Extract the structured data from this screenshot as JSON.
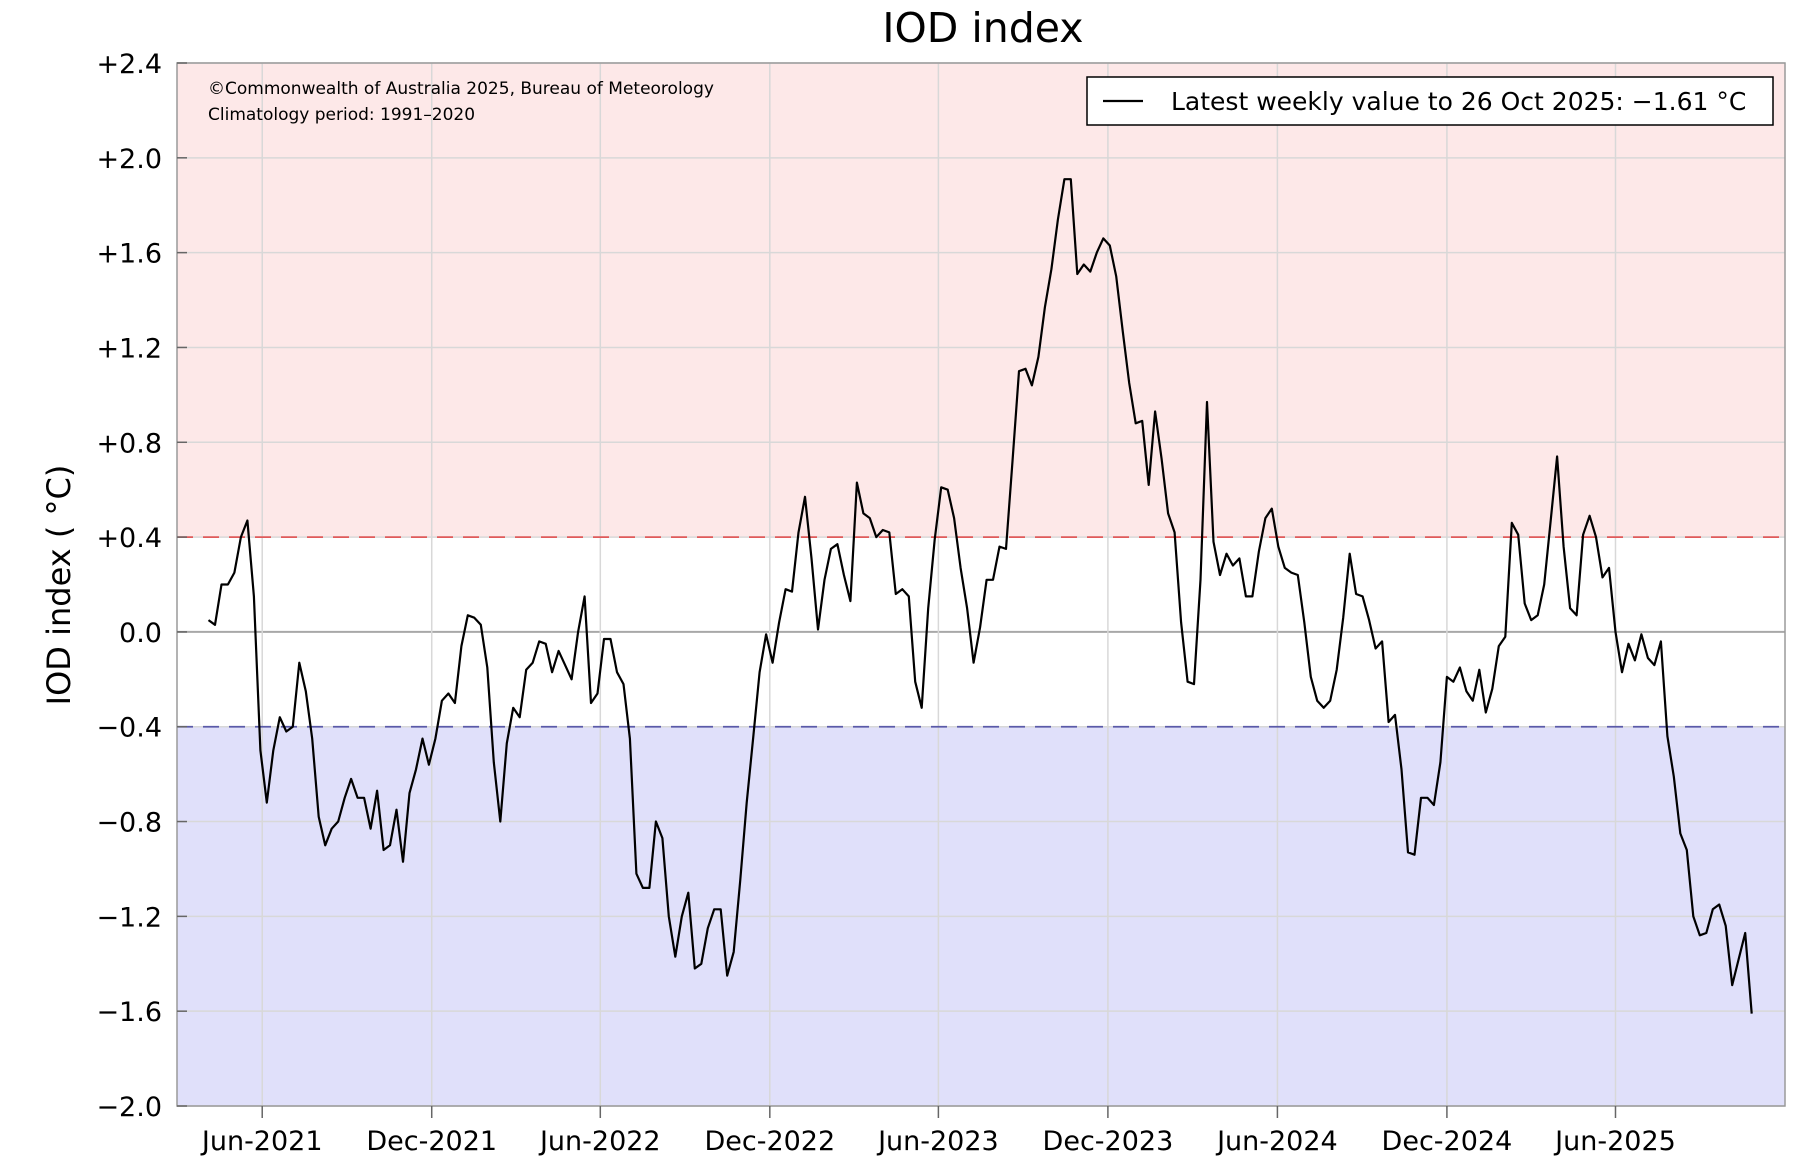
{
  "chart_data": {
    "type": "line",
    "title": "IOD index",
    "ylabel": "IOD index ( °C)",
    "xlabel": "",
    "ylim": [
      -2.0,
      2.4
    ],
    "xlim": [
      "2021-03-01",
      "2025-12-01"
    ],
    "yticks": [
      {
        "value": 2.4,
        "label": "+2.4"
      },
      {
        "value": 2.0,
        "label": "+2.0"
      },
      {
        "value": 1.6,
        "label": "+1.6"
      },
      {
        "value": 1.2,
        "label": "+1.2"
      },
      {
        "value": 0.8,
        "label": "+0.8"
      },
      {
        "value": 0.4,
        "label": "+0.4"
      },
      {
        "value": 0.0,
        "label": "0.0"
      },
      {
        "value": -0.4,
        "label": "−0.4"
      },
      {
        "value": -0.8,
        "label": "−0.8"
      },
      {
        "value": -1.2,
        "label": "−1.2"
      },
      {
        "value": -1.6,
        "label": "−1.6"
      },
      {
        "value": -2.0,
        "label": "−2.0"
      }
    ],
    "xticks": [
      {
        "date": "2021-06-01",
        "label": "Jun-2021"
      },
      {
        "date": "2021-12-01",
        "label": "Dec-2021"
      },
      {
        "date": "2022-06-01",
        "label": "Jun-2022"
      },
      {
        "date": "2022-12-01",
        "label": "Dec-2022"
      },
      {
        "date": "2023-06-01",
        "label": "Jun-2023"
      },
      {
        "date": "2023-12-01",
        "label": "Dec-2023"
      },
      {
        "date": "2024-06-01",
        "label": "Jun-2024"
      },
      {
        "date": "2024-12-01",
        "label": "Dec-2024"
      },
      {
        "date": "2025-06-01",
        "label": "Jun-2025"
      }
    ],
    "grid": true,
    "thresholds": [
      {
        "value": 0.4,
        "color": "#e05a5a",
        "style": "dashed"
      },
      {
        "value": -0.4,
        "color": "#5a5aa8",
        "style": "dashed"
      }
    ],
    "bands": [
      {
        "from": 0.4,
        "to": 2.4,
        "color": "#fde8e8"
      },
      {
        "from": -2.0,
        "to": -0.4,
        "color": "#e0e0fa"
      }
    ],
    "annotations": [
      "©Commonwealth of Australia 2025, Bureau of Meteorology",
      "Climatology period: 1991–2020"
    ],
    "legend": {
      "placement": "top-right",
      "label": "Latest weekly value to 26 Oct 2025: −1.61 °C"
    },
    "series": [
      {
        "color": "#000000",
        "x": [
          "2021-04-04",
          "2021-04-11",
          "2021-04-18",
          "2021-04-25",
          "2021-05-02",
          "2021-05-09",
          "2021-05-16",
          "2021-05-23",
          "2021-05-30",
          "2021-06-06",
          "2021-06-13",
          "2021-06-20",
          "2021-06-27",
          "2021-07-04",
          "2021-07-11",
          "2021-07-18",
          "2021-07-25",
          "2021-08-01",
          "2021-08-08",
          "2021-08-15",
          "2021-08-22",
          "2021-08-29",
          "2021-09-05",
          "2021-09-12",
          "2021-09-19",
          "2021-09-26",
          "2021-10-03",
          "2021-10-10",
          "2021-10-17",
          "2021-10-24",
          "2021-10-31",
          "2021-11-07",
          "2021-11-14",
          "2021-11-21",
          "2021-11-28",
          "2021-12-05",
          "2021-12-12",
          "2021-12-19",
          "2021-12-26",
          "2022-01-02",
          "2022-01-09",
          "2022-01-16",
          "2022-01-23",
          "2022-01-30",
          "2022-02-06",
          "2022-02-13",
          "2022-02-20",
          "2022-02-27",
          "2022-03-06",
          "2022-03-13",
          "2022-03-20",
          "2022-03-27",
          "2022-04-03",
          "2022-04-10",
          "2022-04-17",
          "2022-04-24",
          "2022-05-01",
          "2022-05-08",
          "2022-05-15",
          "2022-05-22",
          "2022-05-29",
          "2022-06-05",
          "2022-06-12",
          "2022-06-19",
          "2022-06-26",
          "2022-07-03",
          "2022-07-10",
          "2022-07-17",
          "2022-07-24",
          "2022-07-31",
          "2022-08-07",
          "2022-08-14",
          "2022-08-21",
          "2022-08-28",
          "2022-09-04",
          "2022-09-11",
          "2022-09-18",
          "2022-09-25",
          "2022-10-02",
          "2022-10-09",
          "2022-10-16",
          "2022-10-23",
          "2022-10-30",
          "2022-11-06",
          "2022-11-13",
          "2022-11-20",
          "2022-11-27",
          "2022-12-04",
          "2022-12-11",
          "2022-12-18",
          "2022-12-25",
          "2023-01-01",
          "2023-01-08",
          "2023-01-15",
          "2023-01-22",
          "2023-01-29",
          "2023-02-05",
          "2023-02-12",
          "2023-02-19",
          "2023-02-26",
          "2023-03-05",
          "2023-03-12",
          "2023-03-19",
          "2023-03-26",
          "2023-04-02",
          "2023-04-09",
          "2023-04-16",
          "2023-04-23",
          "2023-04-30",
          "2023-05-07",
          "2023-05-14",
          "2023-05-21",
          "2023-05-28",
          "2023-06-04",
          "2023-06-11",
          "2023-06-18",
          "2023-06-25",
          "2023-07-02",
          "2023-07-09",
          "2023-07-16",
          "2023-07-23",
          "2023-07-30",
          "2023-08-06",
          "2023-08-13",
          "2023-08-20",
          "2023-08-27",
          "2023-09-03",
          "2023-09-10",
          "2023-09-17",
          "2023-09-24",
          "2023-10-01",
          "2023-10-08",
          "2023-10-15",
          "2023-10-22",
          "2023-10-29",
          "2023-11-05",
          "2023-11-12",
          "2023-11-19",
          "2023-11-26",
          "2023-12-03",
          "2023-12-10",
          "2023-12-17",
          "2023-12-24",
          "2023-12-31",
          "2024-01-07",
          "2024-01-14",
          "2024-01-21",
          "2024-01-28",
          "2024-02-04",
          "2024-02-11",
          "2024-02-18",
          "2024-02-25",
          "2024-03-03",
          "2024-03-10",
          "2024-03-17",
          "2024-03-24",
          "2024-03-31",
          "2024-04-07",
          "2024-04-14",
          "2024-04-21",
          "2024-04-28",
          "2024-05-05",
          "2024-05-12",
          "2024-05-19",
          "2024-05-26",
          "2024-06-02",
          "2024-06-09",
          "2024-06-16",
          "2024-06-23",
          "2024-06-30",
          "2024-07-07",
          "2024-07-14",
          "2024-07-21",
          "2024-07-28",
          "2024-08-04",
          "2024-08-11",
          "2024-08-18",
          "2024-08-25",
          "2024-09-01",
          "2024-09-08",
          "2024-09-15",
          "2024-09-22",
          "2024-09-29",
          "2024-10-06",
          "2024-10-13",
          "2024-10-20",
          "2024-10-27",
          "2024-11-03",
          "2024-11-10",
          "2024-11-17",
          "2024-11-24",
          "2024-12-01",
          "2024-12-08",
          "2024-12-15",
          "2024-12-22",
          "2024-12-29",
          "2025-01-05",
          "2025-01-12",
          "2025-01-19",
          "2025-01-26",
          "2025-02-02",
          "2025-02-09",
          "2025-02-16",
          "2025-02-23",
          "2025-03-02",
          "2025-03-09",
          "2025-03-16",
          "2025-03-23",
          "2025-03-30",
          "2025-04-06",
          "2025-04-13",
          "2025-04-20",
          "2025-04-27",
          "2025-05-04",
          "2025-05-11",
          "2025-05-18",
          "2025-05-25",
          "2025-06-01",
          "2025-06-08",
          "2025-06-15",
          "2025-06-22",
          "2025-06-29",
          "2025-07-06",
          "2025-07-13",
          "2025-07-20",
          "2025-07-27",
          "2025-08-03",
          "2025-08-10",
          "2025-08-17",
          "2025-08-24",
          "2025-08-31",
          "2025-09-07",
          "2025-09-14",
          "2025-09-21",
          "2025-09-28",
          "2025-10-05",
          "2025-10-12",
          "2025-10-19",
          "2025-10-26"
        ],
        "values": [
          0.05,
          0.03,
          0.2,
          0.2,
          0.25,
          0.4,
          0.47,
          0.15,
          -0.5,
          -0.72,
          -0.5,
          -0.36,
          -0.42,
          -0.4,
          -0.13,
          -0.25,
          -0.45,
          -0.78,
          -0.9,
          -0.83,
          -0.8,
          -0.7,
          -0.62,
          -0.7,
          -0.7,
          -0.83,
          -0.67,
          -0.92,
          -0.9,
          -0.75,
          -0.97,
          -0.68,
          -0.58,
          -0.45,
          -0.56,
          -0.45,
          -0.29,
          -0.26,
          -0.3,
          -0.06,
          0.07,
          0.06,
          0.03,
          -0.15,
          -0.55,
          -0.8,
          -0.47,
          -0.32,
          -0.36,
          -0.16,
          -0.13,
          -0.04,
          -0.05,
          -0.17,
          -0.08,
          -0.14,
          -0.2,
          0.0,
          0.15,
          -0.3,
          -0.26,
          -0.03,
          -0.03,
          -0.17,
          -0.22,
          -0.45,
          -1.02,
          -1.08,
          -1.08,
          -0.8,
          -0.87,
          -1.2,
          -1.37,
          -1.2,
          -1.1,
          -1.42,
          -1.4,
          -1.25,
          -1.17,
          -1.17,
          -1.45,
          -1.35,
          -1.05,
          -0.72,
          -0.45,
          -0.17,
          -0.01,
          -0.13,
          0.04,
          0.18,
          0.17,
          0.42,
          0.57,
          0.31,
          0.01,
          0.22,
          0.35,
          0.37,
          0.24,
          0.13,
          0.63,
          0.5,
          0.48,
          0.4,
          0.43,
          0.42,
          0.16,
          0.18,
          0.15,
          -0.21,
          -0.32,
          0.1,
          0.39,
          0.61,
          0.6,
          0.48,
          0.27,
          0.1,
          -0.13,
          0.02,
          0.22,
          0.22,
          0.36,
          0.35,
          0.72,
          1.1,
          1.11,
          1.04,
          1.16,
          1.37,
          1.53,
          1.74,
          1.91,
          1.91,
          1.51,
          1.55,
          1.52,
          1.6,
          1.66,
          1.63,
          1.5,
          1.27,
          1.05,
          0.88,
          0.89,
          0.62,
          0.93,
          0.73,
          0.5,
          0.42,
          0.04,
          -0.21,
          -0.22,
          0.22,
          0.97,
          0.38,
          0.24,
          0.33,
          0.28,
          0.31,
          0.15,
          0.15,
          0.34,
          0.48,
          0.52,
          0.36,
          0.27,
          0.25,
          0.24,
          0.04,
          -0.19,
          -0.29,
          -0.32,
          -0.29,
          -0.16,
          0.06,
          0.33,
          0.16,
          0.15,
          0.05,
          -0.07,
          -0.04,
          -0.38,
          -0.35,
          -0.58,
          -0.93,
          -0.94,
          -0.7,
          -0.7,
          -0.73,
          -0.55,
          -0.19,
          -0.21,
          -0.15,
          -0.25,
          -0.29,
          -0.16,
          -0.34,
          -0.24,
          -0.06,
          -0.02,
          0.46,
          0.41,
          0.12,
          0.05,
          0.07,
          0.2,
          0.47,
          0.74,
          0.36,
          0.1,
          0.07,
          0.41,
          0.49,
          0.4,
          0.23,
          0.27,
          0.0,
          -0.17,
          -0.05,
          -0.12,
          -0.01,
          -0.11,
          -0.14,
          -0.04,
          -0.44,
          -0.61,
          -0.85,
          -0.92,
          -1.2,
          -1.28,
          -1.27,
          -1.17,
          -1.15,
          -1.24,
          -1.49,
          -1.38,
          -1.27,
          -1.61
        ]
      }
    ]
  }
}
